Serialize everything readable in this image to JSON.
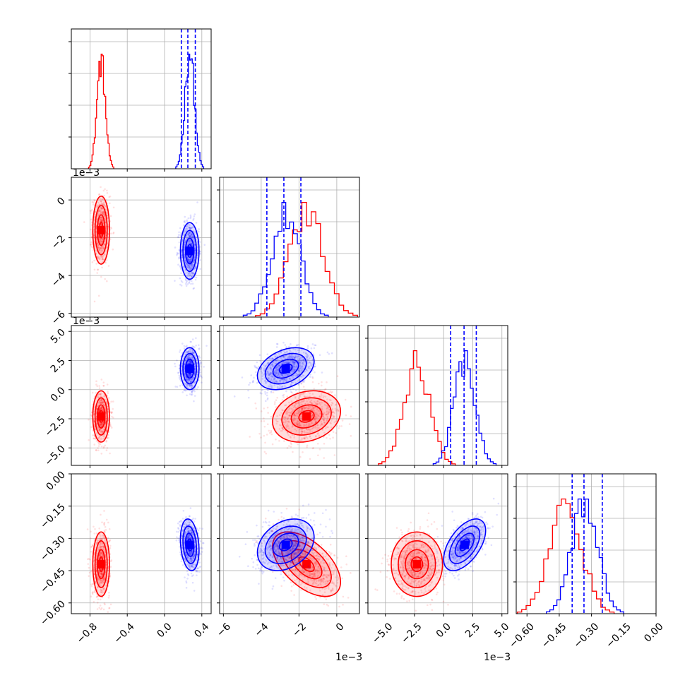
{
  "chart_data": {
    "type": "corner",
    "parameters": [
      {
        "ticks": [
          -0.8,
          -0.4,
          0.0,
          0.4
        ],
        "tick_labels": [
          "−0.8",
          "−0.4",
          "0.0",
          "0.4"
        ],
        "range": [
          -1.0,
          0.5
        ],
        "offset": ""
      },
      {
        "ticks": [
          -6,
          -4,
          -2,
          0
        ],
        "tick_labels": [
          "−6",
          "−4",
          "−2",
          "0"
        ],
        "range": [
          -6.2,
          1.2
        ],
        "offset": "1e−3"
      },
      {
        "ticks": [
          -5.0,
          -2.5,
          0.0,
          2.5,
          5.0
        ],
        "tick_labels": [
          "−5.0",
          "−2.5",
          "0.0",
          "2.5",
          "5.0"
        ],
        "range": [
          -6.5,
          5.5
        ],
        "offset": "1e−3"
      },
      {
        "ticks": [
          -0.6,
          -0.45,
          -0.3,
          -0.15,
          0.0
        ],
        "tick_labels": [
          "−0.60",
          "−0.45",
          "−0.30",
          "−0.15",
          "0.00"
        ],
        "range": [
          -0.65,
          0.0
        ],
        "offset": ""
      }
    ],
    "series": [
      {
        "color": "#ff0000",
        "means": [
          -0.68,
          -1.6,
          -2.3,
          -0.42
        ],
        "sds": [
          0.045,
          0.9,
          1.1,
          0.075
        ],
        "correlations": {
          "1,0": 0.0,
          "2,0": 0.0,
          "2,1": 0.2,
          "3,0": 0.0,
          "3,1": -0.55,
          "3,2": 0.0
        }
      },
      {
        "color": "#0000ff",
        "means": [
          0.27,
          -2.7,
          1.8,
          -0.33
        ],
        "sds": [
          0.05,
          0.75,
          0.9,
          0.06
        ],
        "correlations": {
          "1,0": 0.0,
          "2,0": 0.0,
          "2,1": 0.35,
          "3,0": -0.2,
          "3,1": 0.3,
          "3,2": 0.55
        }
      }
    ],
    "quantile_lines": {
      "color": "#0000ff",
      "values": [
        [
          0.18,
          0.25,
          0.33
        ],
        [
          -3.7,
          -2.8,
          -1.9
        ],
        [
          0.6,
          1.75,
          2.8
        ],
        [
          -0.39,
          -0.335,
          -0.25
        ]
      ]
    },
    "grid": true
  }
}
